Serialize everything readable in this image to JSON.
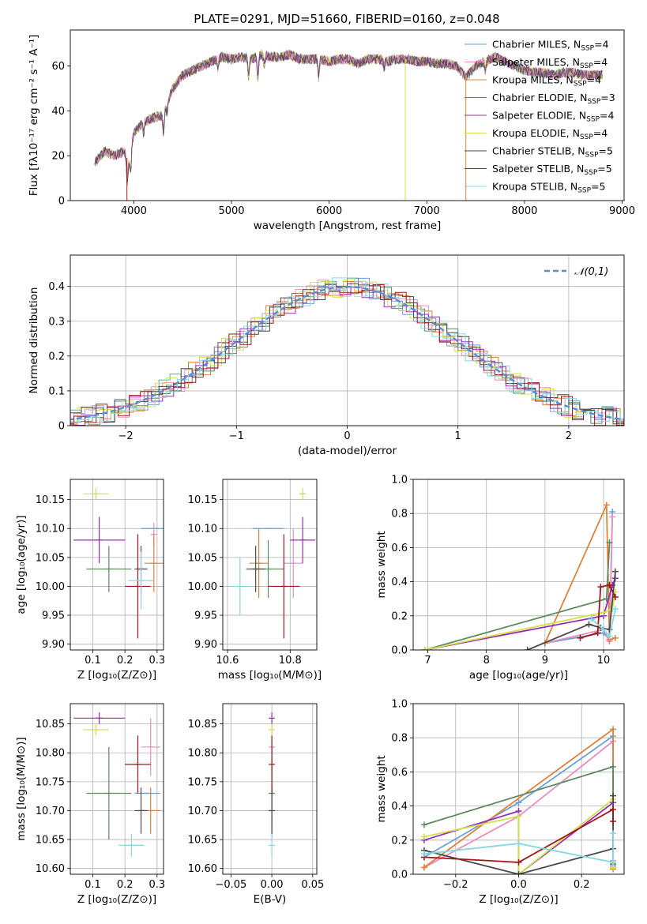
{
  "figure": {
    "title": "PLATE=0291, MJD=51660, FIBERID=0160, z=0.048"
  },
  "models": [
    {
      "name": "Chabrier MILES",
      "nssp": 4,
      "label_pre": "Chabrier MILES, N",
      "label_post": "=4",
      "color": "#6a9fd8"
    },
    {
      "name": "Salpeter MILES",
      "nssp": 4,
      "label_pre": "Salpeter MILES, N",
      "label_post": "=4",
      "color": "#e98fc0"
    },
    {
      "name": "Kroupa MILES",
      "nssp": 4,
      "label_pre": "Kroupa MILES, N",
      "label_post": "=4",
      "color": "#e2813a"
    },
    {
      "name": "Chabrier ELODIE",
      "nssp": 3,
      "label_pre": "Chabrier ELODIE, N",
      "label_post": "=3",
      "color": "#5e8a60"
    },
    {
      "name": "Salpeter ELODIE",
      "nssp": 4,
      "label_pre": "Salpeter ELODIE, N",
      "label_post": "=4",
      "color": "#9a2bb8"
    },
    {
      "name": "Kroupa ELODIE",
      "nssp": 4,
      "label_pre": "Kroupa ELODIE, N",
      "label_post": "=4",
      "color": "#cfe24a"
    },
    {
      "name": "Chabrier STELIB",
      "nssp": 5,
      "label_pre": "Chabrier STELIB, N",
      "label_post": "=5",
      "color": "#4a4a4a"
    },
    {
      "name": "Salpeter STELIB",
      "nssp": 5,
      "label_pre": "Salpeter STELIB, N",
      "label_post": "=5",
      "color": "#a3161a"
    },
    {
      "name": "Kroupa STELIB",
      "nssp": 5,
      "label_pre": "Kroupa STELIB, N",
      "label_post": "=5",
      "color": "#84d8e0"
    }
  ],
  "legend_subscript": "SSP",
  "chart_data": [
    {
      "id": "spectrum",
      "type": "line",
      "xlabel": "wavelength [Angstrom, rest frame]",
      "ylabel": "Flux [fλ10⁻¹⁷ erg cm⁻² s⁻¹ A⁻¹]",
      "xlim": [
        3350,
        9020
      ],
      "ylim": [
        0,
        76
      ],
      "xticks": [
        4000,
        5000,
        6000,
        7000,
        8000,
        9000
      ],
      "yticks": [
        0,
        20,
        40,
        60
      ],
      "grid": false,
      "legend": "top-right",
      "continuum": {
        "x": [
          3600,
          3700,
          3800,
          3900,
          3950,
          4000,
          4100,
          4200,
          4300,
          4400,
          4500,
          4600,
          4700,
          4800,
          4900,
          5000,
          5100,
          5200,
          5300,
          5400,
          5500,
          5600,
          5700,
          5800,
          5900,
          6000,
          6100,
          6200,
          6300,
          6400,
          6500,
          6600,
          6700,
          6800,
          6900,
          7000,
          7100,
          7200,
          7300,
          7400,
          7500,
          7600,
          7700,
          7800,
          7900,
          8000,
          8100,
          8200,
          8300,
          8400,
          8500,
          8600,
          8700,
          8800
        ],
        "y": [
          17,
          22,
          20,
          22,
          17,
          30,
          35,
          37,
          38,
          50,
          56,
          58,
          60,
          62,
          64,
          63,
          64,
          63,
          65,
          64,
          64,
          65,
          63,
          63,
          63,
          62,
          63,
          63,
          61,
          63,
          63,
          62,
          63,
          63,
          62,
          62,
          61,
          61,
          60,
          55,
          60,
          62,
          64,
          62,
          60,
          58,
          57,
          57,
          56,
          57,
          57,
          56,
          56,
          56
        ]
      },
      "absorption_lines": [
        {
          "x": 3933,
          "depth": 10
        },
        {
          "x": 3968,
          "depth": 8
        },
        {
          "x": 4101,
          "depth": 5
        },
        {
          "x": 4305,
          "depth": 8
        },
        {
          "x": 4340,
          "depth": 4
        },
        {
          "x": 4861,
          "depth": 4
        },
        {
          "x": 5175,
          "depth": 8
        },
        {
          "x": 5270,
          "depth": 10
        },
        {
          "x": 5335,
          "depth": 4
        },
        {
          "x": 5893,
          "depth": 8
        },
        {
          "x": 6563,
          "depth": 3
        },
        {
          "x": 7600,
          "depth": 4
        }
      ],
      "artifacts": [
        {
          "x": 6780,
          "color": "#cfe24a"
        },
        {
          "x": 3930,
          "color": "#a3161a"
        },
        {
          "x": 7400,
          "color": "#e2813a"
        }
      ]
    },
    {
      "id": "residuals",
      "type": "step",
      "xlabel": "(data-model)/error",
      "ylabel": "Normed distribution",
      "xlim": [
        -2.5,
        2.5
      ],
      "ylim": [
        0,
        0.49
      ],
      "xticks": [
        -2,
        -1,
        0,
        1,
        2
      ],
      "xticklabels": [
        "−2",
        "−1",
        "0",
        "1",
        "2"
      ],
      "yticks": [
        0.0,
        0.1,
        0.2,
        0.3,
        0.4
      ],
      "grid": true,
      "bin_width": 0.1,
      "reference": {
        "name": "𝒩(0,1)",
        "color": "#5b8ad6",
        "style": "dashed"
      },
      "legend": "top-right"
    },
    {
      "id": "age-vs-Z",
      "type": "errorbar",
      "xlabel": "Z [log₁₀(Z/Z⊙)]",
      "ylabel": "age  [log₁₀(age/yr)]",
      "xlim": [
        0.03,
        0.32
      ],
      "ylim": [
        9.89,
        10.185
      ],
      "xticks": [
        0.1,
        0.2,
        0.3
      ],
      "xticklabels": [
        "0.1",
        "0.2",
        "0.3"
      ],
      "yticks": [
        9.9,
        9.95,
        10.0,
        10.05,
        10.1,
        10.15
      ],
      "yticklabels": [
        "9.90",
        "9.95",
        "10.00",
        "10.05",
        "10.10",
        "10.15"
      ],
      "grid": true,
      "points": [
        {
          "model": "Chabrier MILES",
          "x": 0.29,
          "y": 10.1,
          "xerr": 0.04,
          "yerr": 0.0
        },
        {
          "model": "Salpeter MILES",
          "x": 0.29,
          "y": 10.09,
          "xerr": 0.0,
          "yerr": 0.02
        },
        {
          "model": "Kroupa MILES",
          "x": 0.29,
          "y": 10.04,
          "xerr": 0.03,
          "yerr": 0.05
        },
        {
          "model": "Chabrier ELODIE",
          "x": 0.15,
          "y": 10.03,
          "xerr": 0.07,
          "yerr": 0.04
        },
        {
          "model": "Salpeter ELODIE",
          "x": 0.12,
          "y": 10.08,
          "xerr": 0.08,
          "yerr": 0.04
        },
        {
          "model": "Kroupa ELODIE",
          "x": 0.11,
          "y": 10.16,
          "xerr": 0.04,
          "yerr": 0.01
        },
        {
          "model": "Chabrier STELIB",
          "x": 0.25,
          "y": 10.03,
          "xerr": 0.02,
          "yerr": 0.04
        },
        {
          "model": "Salpeter STELIB",
          "x": 0.24,
          "y": 10.0,
          "xerr": 0.04,
          "yerr": 0.09
        },
        {
          "model": "Kroupa STELIB",
          "x": 0.25,
          "y": 10.01,
          "xerr": 0.04,
          "yerr": 0.05
        }
      ]
    },
    {
      "id": "age-vs-mass",
      "type": "errorbar",
      "xlabel": "mass [log₁₀(M/M⊙)]",
      "ylabel": "",
      "xlim": [
        10.585,
        10.885
      ],
      "ylim": [
        9.89,
        10.185
      ],
      "xticks": [
        10.6,
        10.8
      ],
      "xticklabels": [
        "10.6",
        "10.8"
      ],
      "yticks": [
        9.9,
        9.95,
        10.0,
        10.05,
        10.1,
        10.15
      ],
      "yticklabels": [
        "9.90",
        "9.95",
        "10.00",
        "10.05",
        "10.10",
        "10.15"
      ],
      "grid": true,
      "points": [
        {
          "model": "Chabrier MILES",
          "x": 10.73,
          "y": 10.1,
          "xerr": 0.05,
          "yerr": 0.0
        },
        {
          "model": "Salpeter MILES",
          "x": 10.81,
          "y": 10.04,
          "xerr": 0.03,
          "yerr": 0.06
        },
        {
          "model": "Kroupa MILES",
          "x": 10.7,
          "y": 10.04,
          "xerr": 0.03,
          "yerr": 0.06
        },
        {
          "model": "Chabrier ELODIE",
          "x": 10.73,
          "y": 10.03,
          "xerr": 0.05,
          "yerr": 0.05
        },
        {
          "model": "Salpeter ELODIE",
          "x": 10.84,
          "y": 10.08,
          "xerr": 0.04,
          "yerr": 0.04
        },
        {
          "model": "Kroupa ELODIE",
          "x": 10.84,
          "y": 10.16,
          "xerr": 0.01,
          "yerr": 0.01
        },
        {
          "model": "Chabrier STELIB",
          "x": 10.69,
          "y": 10.03,
          "xerr": 0.03,
          "yerr": 0.04
        },
        {
          "model": "Salpeter STELIB",
          "x": 10.78,
          "y": 10.0,
          "xerr": 0.05,
          "yerr": 0.09
        },
        {
          "model": "Kroupa STELIB",
          "x": 10.64,
          "y": 10.0,
          "xerr": 0.03,
          "yerr": 0.05
        }
      ]
    },
    {
      "id": "weight-vs-age",
      "type": "line",
      "xlabel": "age  [log₁₀(age/yr)]",
      "ylabel": "mass weight",
      "xlim": [
        6.75,
        10.35
      ],
      "ylim": [
        0.0,
        1.0
      ],
      "xticks": [
        7,
        8,
        9,
        10
      ],
      "xticklabels": [
        "7",
        "8",
        "9",
        "10"
      ],
      "yticks": [
        0.0,
        0.2,
        0.4,
        0.6,
        0.8,
        1.0
      ],
      "yticklabels": [
        "0.0",
        "0.2",
        "0.4",
        "0.6",
        "0.8",
        "1.0"
      ],
      "grid": true,
      "series": [
        {
          "model": "Chabrier MILES",
          "x": [
            9.0,
            10.0,
            10.1,
            10.15
          ],
          "y": [
            0.04,
            0.1,
            0.06,
            0.81
          ]
        },
        {
          "model": "Salpeter MILES",
          "x": [
            9.0,
            10.0,
            10.1,
            10.15
          ],
          "y": [
            0.04,
            0.12,
            0.05,
            0.78
          ]
        },
        {
          "model": "Kroupa MILES",
          "x": [
            9.0,
            10.05,
            10.1,
            10.2
          ],
          "y": [
            0.04,
            0.85,
            0.06,
            0.07
          ]
        },
        {
          "model": "Chabrier ELODIE",
          "x": [
            6.95,
            10.05,
            10.1
          ],
          "y": [
            0.0,
            0.3,
            0.63
          ]
        },
        {
          "model": "Salpeter ELODIE",
          "x": [
            6.95,
            10.0,
            10.15,
            10.2
          ],
          "y": [
            0.0,
            0.2,
            0.38,
            0.42
          ]
        },
        {
          "model": "Kroupa ELODIE",
          "x": [
            6.95,
            10.0,
            10.15,
            10.2
          ],
          "y": [
            0.0,
            0.22,
            0.24,
            0.34
          ]
        },
        {
          "model": "Chabrier STELIB",
          "x": [
            8.7,
            9.75,
            9.95,
            10.1,
            10.2
          ],
          "y": [
            0.0,
            0.15,
            0.13,
            0.12,
            0.46
          ]
        },
        {
          "model": "Salpeter STELIB",
          "x": [
            9.6,
            9.9,
            9.95,
            10.1,
            10.2
          ],
          "y": [
            0.07,
            0.1,
            0.37,
            0.38,
            0.31
          ]
        },
        {
          "model": "Kroupa STELIB",
          "x": [
            9.8,
            10.0,
            10.1,
            10.2
          ],
          "y": [
            0.18,
            0.12,
            0.08,
            0.24
          ]
        }
      ]
    },
    {
      "id": "mass-vs-Z",
      "type": "errorbar",
      "xlabel": "Z [log₁₀(Z/Z⊙)]",
      "ylabel": "mass [log₁₀(M/M⊙)]",
      "xlim": [
        0.03,
        0.32
      ],
      "ylim": [
        10.59,
        10.885
      ],
      "xticks": [
        0.1,
        0.2,
        0.3
      ],
      "xticklabels": [
        "0.1",
        "0.2",
        "0.3"
      ],
      "yticks": [
        10.6,
        10.65,
        10.7,
        10.75,
        10.8,
        10.85
      ],
      "yticklabels": [
        "10.60",
        "10.65",
        "10.70",
        "10.75",
        "10.80",
        "10.85"
      ],
      "grid": true,
      "points": [
        {
          "model": "Chabrier MILES",
          "x": 0.27,
          "y": 10.73,
          "xerr": 0.04,
          "yerr": 0.0
        },
        {
          "model": "Salpeter MILES",
          "x": 0.28,
          "y": 10.81,
          "xerr": 0.03,
          "yerr": 0.05
        },
        {
          "model": "Kroupa MILES",
          "x": 0.28,
          "y": 10.7,
          "xerr": 0.03,
          "yerr": 0.04
        },
        {
          "model": "Chabrier ELODIE",
          "x": 0.15,
          "y": 10.73,
          "xerr": 0.07,
          "yerr": 0.08
        },
        {
          "model": "Salpeter ELODIE",
          "x": 0.12,
          "y": 10.86,
          "xerr": 0.08,
          "yerr": 0.01
        },
        {
          "model": "Kroupa ELODIE",
          "x": 0.11,
          "y": 10.84,
          "xerr": 0.04,
          "yerr": 0.01
        },
        {
          "model": "Chabrier STELIB",
          "x": 0.25,
          "y": 10.7,
          "xerr": 0.02,
          "yerr": 0.04
        },
        {
          "model": "Salpeter STELIB",
          "x": 0.24,
          "y": 10.78,
          "xerr": 0.04,
          "yerr": 0.05
        },
        {
          "model": "Kroupa STELIB",
          "x": 0.22,
          "y": 10.64,
          "xerr": 0.04,
          "yerr": 0.02
        }
      ]
    },
    {
      "id": "mass-vs-ebv",
      "type": "errorbar",
      "xlabel": "E(B-V)",
      "ylabel": "",
      "xlim": [
        -0.06,
        0.055
      ],
      "ylim": [
        10.59,
        10.885
      ],
      "xticks": [
        -0.05,
        0.0,
        0.05
      ],
      "xticklabels": [
        "−0.05",
        "0.00",
        "0.05"
      ],
      "yticks": [
        10.6,
        10.65,
        10.7,
        10.75,
        10.8,
        10.85
      ],
      "yticklabels": [
        "10.60",
        "10.65",
        "10.70",
        "10.75",
        "10.80",
        "10.85"
      ],
      "grid": true,
      "points": [
        {
          "model": "Chabrier MILES",
          "x": 0.0,
          "y": 10.73,
          "xerr": 0.0,
          "yerr": 0.05
        },
        {
          "model": "Salpeter MILES",
          "x": 0.0,
          "y": 10.81,
          "xerr": 0.0,
          "yerr": 0.05
        },
        {
          "model": "Kroupa MILES",
          "x": 0.0,
          "y": 10.7,
          "xerr": 0.0,
          "yerr": 0.04
        },
        {
          "model": "Chabrier ELODIE",
          "x": 0.0,
          "y": 10.73,
          "xerr": 0.0,
          "yerr": 0.08
        },
        {
          "model": "Salpeter ELODIE",
          "x": 0.0,
          "y": 10.86,
          "xerr": 0.0,
          "yerr": 0.01
        },
        {
          "model": "Kroupa ELODIE",
          "x": 0.0,
          "y": 10.84,
          "xerr": 0.0,
          "yerr": 0.01
        },
        {
          "model": "Chabrier STELIB",
          "x": 0.0,
          "y": 10.7,
          "xerr": 0.0,
          "yerr": 0.04
        },
        {
          "model": "Salpeter STELIB",
          "x": 0.0,
          "y": 10.78,
          "xerr": 0.0,
          "yerr": 0.05
        },
        {
          "model": "Kroupa STELIB",
          "x": 0.0,
          "y": 10.64,
          "xerr": 0.0,
          "yerr": 0.02
        }
      ]
    },
    {
      "id": "weight-vs-Z",
      "type": "line",
      "xlabel": "Z [log₁₀(Z/Z⊙)]",
      "ylabel": "mass weight",
      "xlim": [
        -0.335,
        0.335
      ],
      "ylim": [
        0.0,
        1.0
      ],
      "xticks": [
        -0.2,
        0.0,
        0.2
      ],
      "xticklabels": [
        "−0.2",
        "0.0",
        "0.2"
      ],
      "yticks": [
        0.0,
        0.2,
        0.4,
        0.6,
        0.8,
        1.0
      ],
      "yticklabels": [
        "0.0",
        "0.2",
        "0.4",
        "0.6",
        "0.8",
        "1.0"
      ],
      "grid": true,
      "series": [
        {
          "model": "Chabrier MILES",
          "x": [
            -0.3,
            0.0,
            0.3,
            0.3
          ],
          "y": [
            0.1,
            0.42,
            0.81,
            0.05
          ]
        },
        {
          "model": "Salpeter MILES",
          "x": [
            -0.3,
            0.0,
            0.3,
            0.3
          ],
          "y": [
            0.04,
            0.34,
            0.78,
            0.08
          ]
        },
        {
          "model": "Kroupa MILES",
          "x": [
            -0.3,
            0.3,
            0.3,
            0.3
          ],
          "y": [
            0.04,
            0.85,
            0.06,
            0.03
          ]
        },
        {
          "model": "Chabrier ELODIE",
          "x": [
            -0.3,
            0.3,
            0.3
          ],
          "y": [
            0.29,
            0.63,
            0.06
          ]
        },
        {
          "model": "Salpeter ELODIE",
          "x": [
            -0.3,
            0.0,
            0.0,
            0.3,
            0.3
          ],
          "y": [
            0.2,
            0.37,
            0.0,
            0.42,
            0.04
          ]
        },
        {
          "model": "Kroupa ELODIE",
          "x": [
            -0.3,
            0.0,
            0.0,
            0.3,
            0.3
          ],
          "y": [
            0.22,
            0.34,
            0.0,
            0.44,
            0.04
          ]
        },
        {
          "model": "Chabrier STELIB",
          "x": [
            -0.3,
            0.0,
            0.3,
            0.3
          ],
          "y": [
            0.14,
            0.0,
            0.15,
            0.46
          ]
        },
        {
          "model": "Salpeter STELIB",
          "x": [
            -0.3,
            0.0,
            0.3,
            0.3
          ],
          "y": [
            0.1,
            0.07,
            0.38,
            0.31
          ]
        },
        {
          "model": "Kroupa STELIB",
          "x": [
            -0.3,
            0.0,
            0.3,
            0.3
          ],
          "y": [
            0.12,
            0.18,
            0.07,
            0.24
          ]
        }
      ]
    }
  ]
}
